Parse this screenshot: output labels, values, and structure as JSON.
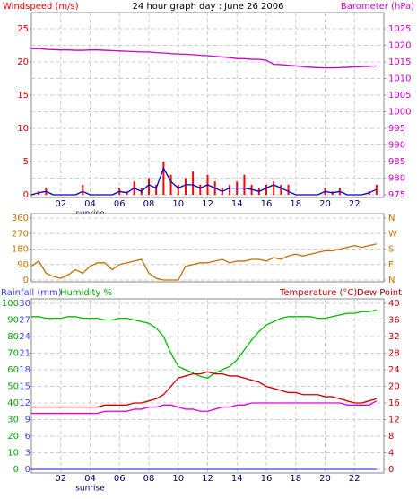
{
  "chart_data": [
    {
      "type": "bar",
      "title": "24 hour graph day : June 26 2006",
      "axis_labels": [
        {
          "text": "Windspeed (m/s)",
          "color": "#dd0000"
        },
        {
          "text": "Barometer (hPa)",
          "color": "#cc00cc"
        }
      ],
      "annotations": [
        {
          "text": "sunrise",
          "x": 4
        }
      ],
      "x": [
        0,
        0.5,
        1,
        1.5,
        2,
        2.5,
        3,
        3.5,
        4,
        4.5,
        5,
        5.5,
        6,
        6.5,
        7,
        7.5,
        8,
        8.5,
        9,
        9.5,
        10,
        10.5,
        11,
        11.5,
        12,
        12.5,
        13,
        13.5,
        14,
        14.5,
        15,
        15.5,
        16,
        16.5,
        17,
        17.5,
        18,
        18.5,
        19,
        19.5,
        20,
        20.5,
        21,
        21.5,
        22,
        22.5,
        23,
        23.5
      ],
      "xlim": [
        0,
        24
      ],
      "xticks": [
        {
          "value": 2,
          "label": "02"
        },
        {
          "value": 4,
          "label": "04"
        },
        {
          "value": 6,
          "label": "06"
        },
        {
          "value": 8,
          "label": "08"
        },
        10,
        12,
        14,
        16,
        18,
        20,
        22
      ],
      "ylim": [
        0,
        25
      ],
      "yticks": [
        0,
        5,
        10,
        15,
        20,
        25
      ],
      "ycolor": "#dd0000",
      "y2lim": [
        975,
        1025
      ],
      "y2ticks": [
        975,
        980,
        985,
        990,
        995,
        1000,
        1005,
        1010,
        1015,
        1020,
        1025
      ],
      "y2color": "#cc00cc",
      "grid": "y2",
      "series": [
        {
          "kind": "bar",
          "color": "#ff0000",
          "values": [
            0,
            0.5,
            1,
            0,
            0,
            0,
            0,
            1.5,
            0,
            0,
            0,
            0,
            1,
            0.5,
            2,
            1,
            2.5,
            1.5,
            5,
            3,
            1.5,
            2.5,
            3.5,
            1.5,
            3,
            2,
            1,
            1.5,
            2,
            3,
            1.5,
            1,
            1.5,
            2,
            1.5,
            1.5,
            0,
            0,
            0,
            0,
            1,
            0.5,
            1,
            0,
            0,
            0,
            0.5,
            1.5
          ]
        },
        {
          "kind": "line",
          "color": "#0000cc",
          "values": [
            0,
            0.3,
            0.5,
            0,
            0,
            0,
            0,
            0.5,
            0,
            0,
            0,
            0,
            0.5,
            0.3,
            1,
            0.5,
            1.5,
            1,
            4,
            2,
            1,
            1.5,
            1.5,
            1,
            1.5,
            1,
            0.5,
            1,
            1,
            1,
            0.8,
            0.5,
            1,
            1.5,
            1,
            0.5,
            0,
            0,
            0,
            0,
            0.5,
            0.3,
            0.5,
            0,
            0,
            0,
            0.3,
            0.8
          ]
        },
        {
          "kind": "line",
          "axis": "y2",
          "color": "#cc00cc",
          "values": [
            1019,
            1019,
            1018.8,
            1018.7,
            1018.6,
            1018.6,
            1018.5,
            1018.5,
            1018.6,
            1018.6,
            1018.5,
            1018.4,
            1018.3,
            1018.2,
            1018.1,
            1018,
            1018,
            1017.8,
            1017.7,
            1017.5,
            1017.4,
            1017.3,
            1017.2,
            1017,
            1016.9,
            1016.7,
            1016.5,
            1016.3,
            1016,
            1016,
            1015.8,
            1015.8,
            1015.5,
            1014.3,
            1014.2,
            1014,
            1013.8,
            1013.6,
            1013.4,
            1013.3,
            1013.2,
            1013.2,
            1013.3,
            1013.4,
            1013.5,
            1013.6,
            1013.7,
            1013.8
          ]
        }
      ]
    },
    {
      "type": "line",
      "x": [
        0,
        0.5,
        1,
        1.5,
        2,
        2.5,
        3,
        3.5,
        4,
        4.5,
        5,
        5.5,
        6,
        6.5,
        7,
        7.5,
        8,
        8.5,
        9,
        9.5,
        10,
        10.5,
        11,
        11.5,
        12,
        12.5,
        13,
        13.5,
        14,
        14.5,
        15,
        15.5,
        16,
        16.5,
        17,
        17.5,
        18,
        18.5,
        19,
        19.5,
        20,
        20.5,
        21,
        21.5,
        22,
        22.5,
        23,
        23.5
      ],
      "xlim": [
        0,
        24
      ],
      "ylim": [
        0,
        360
      ],
      "yticks": [
        0,
        90,
        180,
        270,
        360
      ],
      "ycolor": "#c07000",
      "y2lim": [
        0,
        360
      ],
      "y2ticks": [
        {
          "value": 0,
          "label": "N"
        },
        {
          "value": 90,
          "label": "E"
        },
        {
          "value": 180,
          "label": "S"
        },
        {
          "value": 270,
          "label": "W"
        },
        {
          "value": 360,
          "label": "N"
        }
      ],
      "y2color": "#c07000",
      "grid": "y",
      "series": [
        {
          "kind": "line",
          "color": "#c07000",
          "values": [
            80,
            110,
            40,
            20,
            10,
            30,
            60,
            40,
            80,
            100,
            100,
            60,
            90,
            100,
            110,
            120,
            40,
            10,
            0,
            0,
            0,
            80,
            90,
            100,
            100,
            110,
            120,
            100,
            110,
            110,
            120,
            120,
            110,
            130,
            120,
            140,
            150,
            140,
            150,
            160,
            170,
            170,
            180,
            190,
            200,
            190,
            200,
            210
          ]
        }
      ]
    },
    {
      "type": "line",
      "axis_labels": [
        {
          "text": "Rainfall (mm)",
          "color": "#4040ff"
        },
        {
          "text": "Humidity %",
          "color": "#00aa00"
        },
        {
          "text": "Temperature (°C)",
          "color": "#cc0000"
        },
        {
          "text": "Dew Point",
          "color": "#aa0000"
        }
      ],
      "annotations": [
        {
          "text": "sunrise",
          "x": 4
        }
      ],
      "x": [
        0,
        0.5,
        1,
        1.5,
        2,
        2.5,
        3,
        3.5,
        4,
        4.5,
        5,
        5.5,
        6,
        6.5,
        7,
        7.5,
        8,
        8.5,
        9,
        9.5,
        10,
        10.5,
        11,
        11.5,
        12,
        12.5,
        13,
        13.5,
        14,
        14.5,
        15,
        15.5,
        16,
        16.5,
        17,
        17.5,
        18,
        18.5,
        19,
        19.5,
        20,
        20.5,
        21,
        21.5,
        22,
        22.5,
        23,
        23.5
      ],
      "xlim": [
        0,
        24
      ],
      "xticks": [
        {
          "value": 2,
          "label": "02"
        },
        {
          "value": 4,
          "label": "04"
        },
        {
          "value": 6,
          "label": "06"
        },
        {
          "value": 8,
          "label": "08"
        },
        10,
        12,
        14,
        16,
        18,
        20,
        22
      ],
      "ylim": [
        0,
        30
      ],
      "yticks": [
        0,
        3,
        6,
        9,
        12,
        15,
        18,
        21,
        24,
        27,
        30
      ],
      "ycolor": "#4040ff",
      "y3lim": [
        0,
        100
      ],
      "y3ticks": [
        0,
        10,
        20,
        30,
        40,
        50,
        60,
        70,
        80,
        90,
        100
      ],
      "y3color": "#00aa00",
      "y2lim": [
        0,
        40
      ],
      "y2ticks": [
        0,
        4,
        8,
        12,
        16,
        20,
        24,
        28,
        32,
        36,
        40
      ],
      "y2color": "#cc0000",
      "grid": "y2",
      "series": [
        {
          "kind": "line",
          "color": "#4040ff",
          "values": [
            0,
            0,
            0,
            0,
            0,
            0,
            0,
            0,
            0,
            0,
            0,
            0,
            0,
            0,
            0,
            0,
            0,
            0,
            0,
            0,
            0,
            0,
            0,
            0,
            0,
            0,
            0,
            0,
            0,
            0,
            0,
            0,
            0,
            0,
            0,
            0,
            0,
            0,
            0,
            0,
            0,
            0,
            0,
            0,
            0,
            0,
            0,
            0
          ]
        },
        {
          "kind": "line",
          "axis": "y3",
          "color": "#00bb00",
          "values": [
            92,
            92,
            91,
            91,
            91,
            92,
            92,
            91,
            91,
            91,
            90,
            90,
            91,
            91,
            90,
            89,
            88,
            85,
            80,
            70,
            62,
            60,
            58,
            56,
            55,
            58,
            60,
            62,
            66,
            72,
            78,
            83,
            87,
            89,
            91,
            92,
            92,
            92,
            92,
            91,
            91,
            92,
            93,
            94,
            94,
            95,
            95,
            96
          ]
        },
        {
          "kind": "line",
          "axis": "y2",
          "color": "#cc0000",
          "values": [
            15,
            15,
            15,
            15,
            15,
            15,
            15,
            15,
            15,
            15,
            15.5,
            15.5,
            15.5,
            15.5,
            16,
            16,
            16.5,
            17,
            18,
            20,
            22,
            22.5,
            23,
            23,
            23.5,
            23,
            23,
            22.5,
            22.5,
            22,
            21.5,
            21,
            20,
            19.5,
            19,
            18.5,
            18.5,
            18,
            18,
            18,
            17.5,
            17.5,
            17,
            16.5,
            16,
            16,
            16.5,
            17
          ]
        },
        {
          "kind": "line",
          "axis": "y2",
          "color": "#dd00dd",
          "values": [
            13.5,
            13.5,
            13.5,
            13.5,
            13.5,
            13.5,
            13.5,
            13.5,
            13.5,
            13.5,
            14,
            14,
            14,
            14,
            14.5,
            14.5,
            15,
            15,
            15.5,
            15.5,
            15,
            14.5,
            14.5,
            14,
            14,
            14.5,
            15,
            15,
            15.5,
            15.5,
            16,
            16,
            16,
            16,
            16,
            16,
            16,
            16,
            16,
            16,
            16,
            16,
            16,
            15.5,
            15.5,
            15.5,
            15.5,
            16.5
          ]
        }
      ]
    }
  ]
}
